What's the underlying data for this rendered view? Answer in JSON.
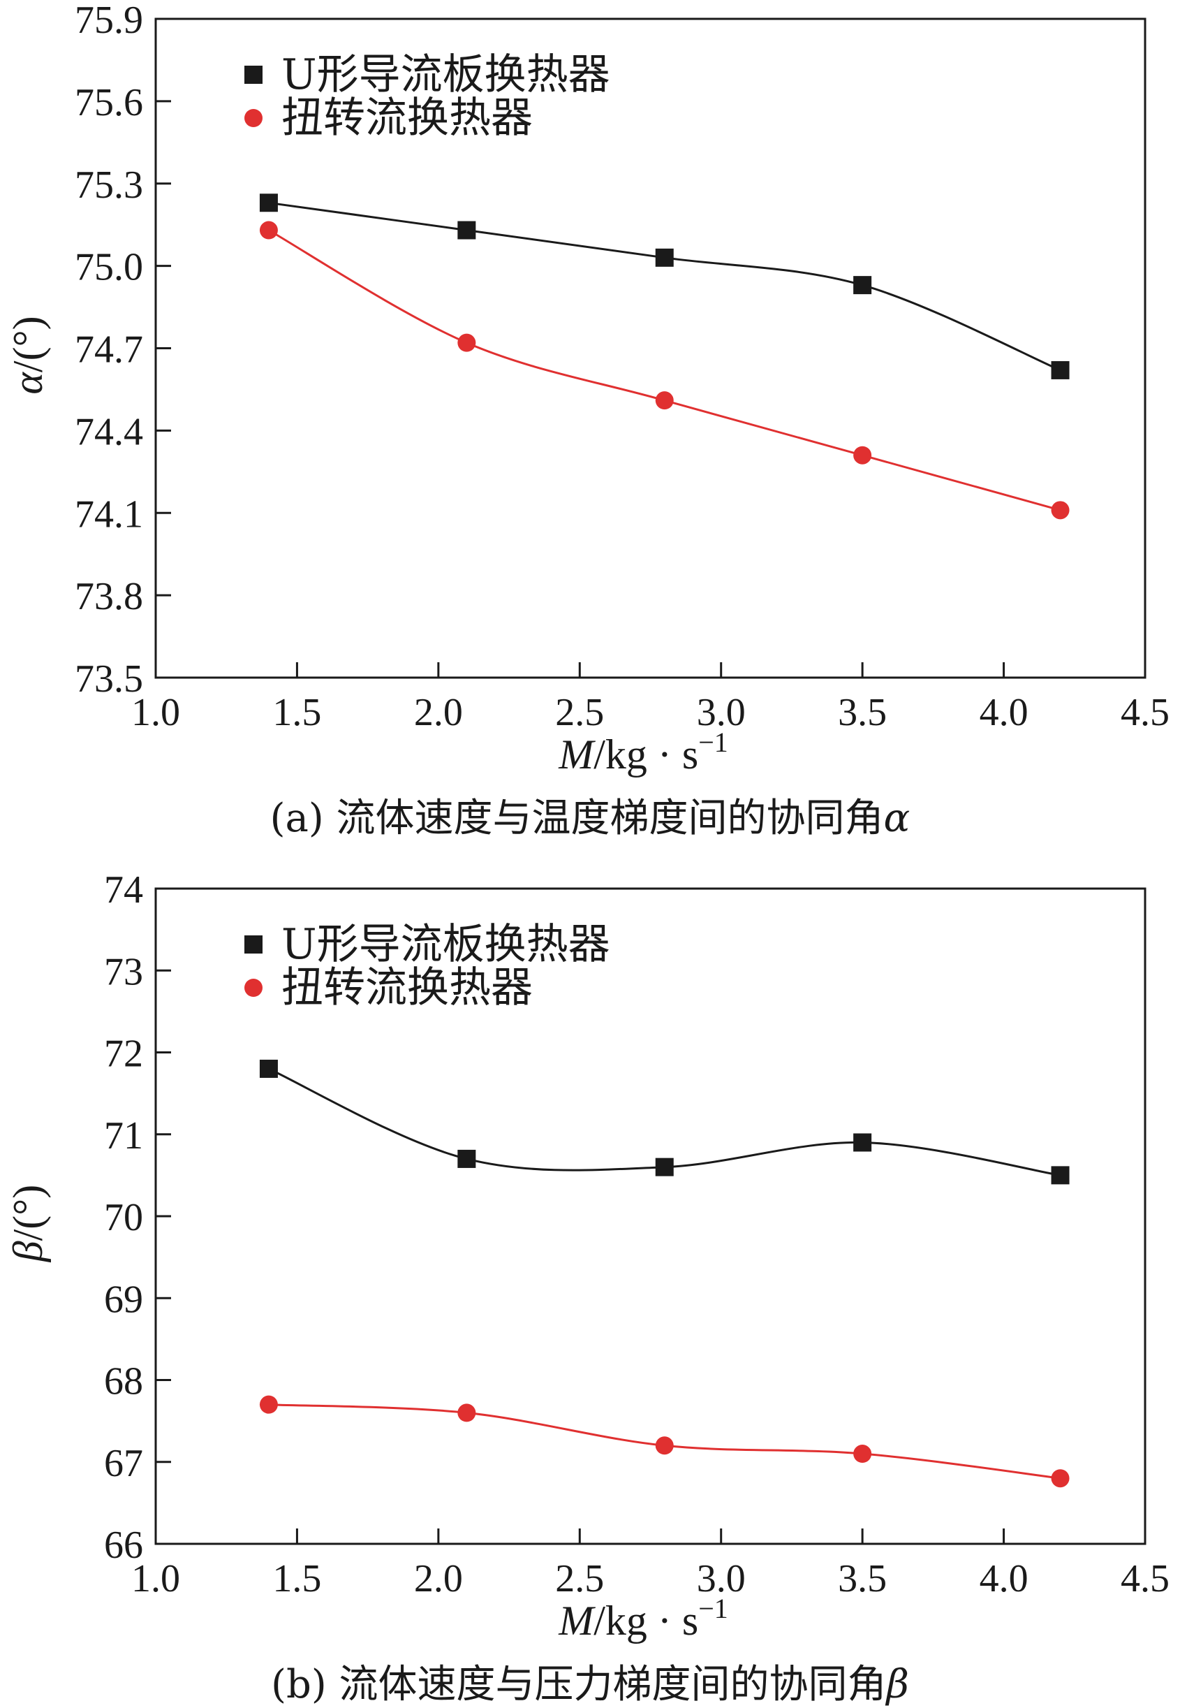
{
  "chart_data": [
    {
      "type": "line",
      "x": [
        1.4,
        2.1,
        2.8,
        3.5,
        4.2
      ],
      "series": [
        {
          "name": "U形导流板换热器",
          "values": [
            75.23,
            75.13,
            75.03,
            74.93,
            74.62
          ],
          "color": "#1a1a1a",
          "marker": "square"
        },
        {
          "name": "扭转流换热器",
          "values": [
            75.13,
            74.72,
            74.51,
            74.31,
            74.11
          ],
          "color": "#e03030",
          "marker": "circle"
        }
      ],
      "xlim": [
        1.0,
        4.5
      ],
      "ylim": [
        73.5,
        75.9
      ],
      "xticks": [
        "1.0",
        "1.5",
        "2.0",
        "2.5",
        "3.0",
        "3.5",
        "4.0",
        "4.5"
      ],
      "yticks": [
        "73.5",
        "73.8",
        "74.1",
        "74.4",
        "74.7",
        "75.0",
        "75.3",
        "75.6",
        "75.9"
      ],
      "xlabel": {
        "var": "M",
        "unit": "/kg · s",
        "sup": "−1"
      },
      "ylabel": {
        "var": "α",
        "unit": "/(°)"
      },
      "caption": {
        "prefix": "(a) 流体速度与温度梯度间的协同角",
        "var": "α"
      },
      "grid": false,
      "legend_position": "top-left"
    },
    {
      "type": "line",
      "x": [
        1.4,
        2.1,
        2.8,
        3.5,
        4.2
      ],
      "series": [
        {
          "name": "U形导流板换热器",
          "values": [
            71.8,
            70.7,
            70.6,
            70.9,
            70.5
          ],
          "color": "#1a1a1a",
          "marker": "square"
        },
        {
          "name": "扭转流换热器",
          "values": [
            67.7,
            67.6,
            67.2,
            67.1,
            66.8
          ],
          "color": "#e03030",
          "marker": "circle"
        }
      ],
      "xlim": [
        1.0,
        4.5
      ],
      "ylim": [
        66,
        74
      ],
      "xticks": [
        "1.0",
        "1.5",
        "2.0",
        "2.5",
        "3.0",
        "3.5",
        "4.0",
        "4.5"
      ],
      "yticks": [
        "66",
        "67",
        "68",
        "69",
        "70",
        "71",
        "72",
        "73",
        "74"
      ],
      "xlabel": {
        "var": "M",
        "unit": "/kg · s",
        "sup": "−1"
      },
      "ylabel": {
        "var": "β",
        "unit": "/(°)"
      },
      "caption": {
        "prefix": "(b) 流体速度与压力梯度间的协同角",
        "var": "β"
      },
      "grid": false,
      "legend_position": "top-left"
    }
  ]
}
